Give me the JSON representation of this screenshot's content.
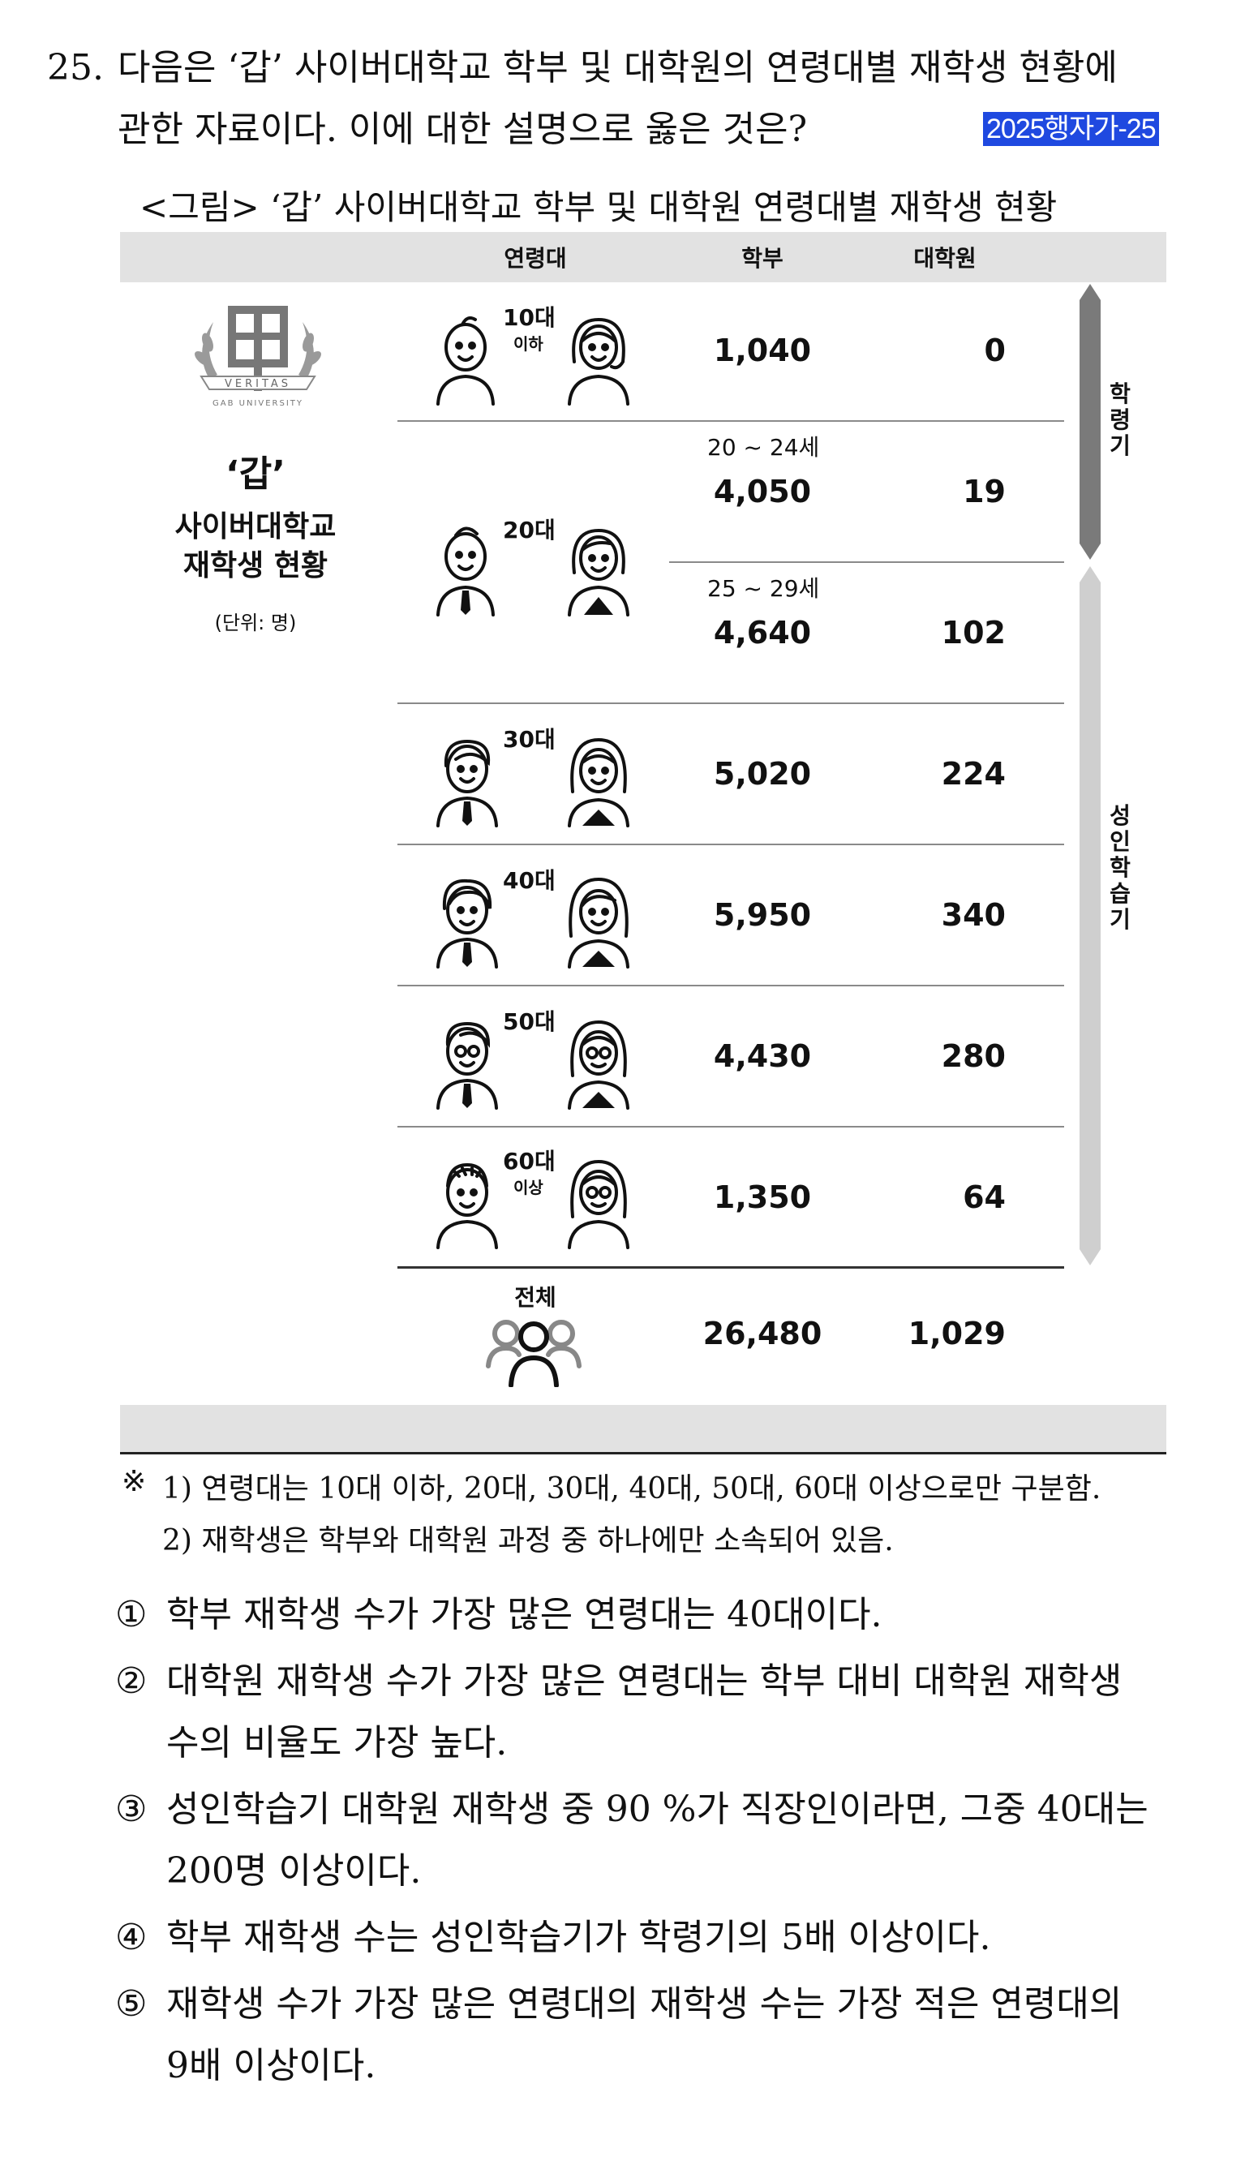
{
  "question": {
    "number": "25.",
    "line1": "다음은 ‘갑’ 사이버대학교 학부 및 대학원의 연령대별 재학생 현황에",
    "line2": "관한 자료이다. 이에 대한 설명으로 옳은 것은?",
    "tag": "2025행자가-25"
  },
  "figure": {
    "title": "<그림> ‘갑’ 사이버대학교 학부 및 대학원 연령대별 재학생 현황",
    "headers": {
      "age": "연령대",
      "undergrad": "학부",
      "grad": "대학원"
    },
    "logo_text": "VERITAS",
    "logo_subtext": "GAB UNIVERSITY",
    "left_title_1": "‘갑’",
    "left_title_2": "사이버대학교",
    "left_title_3": "재학생 현황",
    "unit": "(단위: 명)",
    "rows": [
      {
        "age": "10대",
        "age_sub": "이하",
        "undergrad": "1,040",
        "grad": "0"
      },
      {
        "age": "20대",
        "sub_rows": [
          {
            "range": "20 ~ 24세",
            "undergrad": "4,050",
            "grad": "19"
          },
          {
            "range": "25 ~ 29세",
            "undergrad": "4,640",
            "grad": "102"
          }
        ]
      },
      {
        "age": "30대",
        "undergrad": "5,020",
        "grad": "224"
      },
      {
        "age": "40대",
        "undergrad": "5,950",
        "grad": "340"
      },
      {
        "age": "50대",
        "undergrad": "4,430",
        "grad": "280"
      },
      {
        "age": "60대",
        "age_sub": "이상",
        "undergrad": "1,350",
        "grad": "64"
      }
    ],
    "total": {
      "label": "전체",
      "undergrad": "26,480",
      "grad": "1,029"
    },
    "side_label_1": "학령기",
    "side_label_2": "성인학습기",
    "colors": {
      "header_bg": "#e2e2e2",
      "bar_dark": "#7a7a7a",
      "bar_light": "#cfcfcf",
      "tag_bg": "#1f49e0"
    }
  },
  "notes": {
    "mark": "※",
    "n1": "1) 연령대는 10대 이하, 20대, 30대, 40대, 50대, 60대 이상으로만 구분함.",
    "n2": "2) 재학생은 학부와 대학원 과정 중 하나에만 소속되어 있음."
  },
  "options": [
    {
      "mark": "①",
      "line1": "학부 재학생 수가 가장 많은 연령대는 40대이다."
    },
    {
      "mark": "②",
      "line1": "대학원 재학생 수가 가장 많은 연령대는 학부 대비 대학원 재학생",
      "line2": "수의 비율도 가장 높다."
    },
    {
      "mark": "③",
      "line1": "성인학습기 대학원 재학생 중 90 %가 직장인이라면, 그중 40대는",
      "line2": "200명 이상이다."
    },
    {
      "mark": "④",
      "line1": "학부 재학생 수는 성인학습기가 학령기의 5배 이상이다."
    },
    {
      "mark": "⑤",
      "line1": "재학생 수가 가장 많은 연령대의 재학생 수는 가장 적은 연령대의",
      "line2": "9배 이상이다."
    }
  ]
}
